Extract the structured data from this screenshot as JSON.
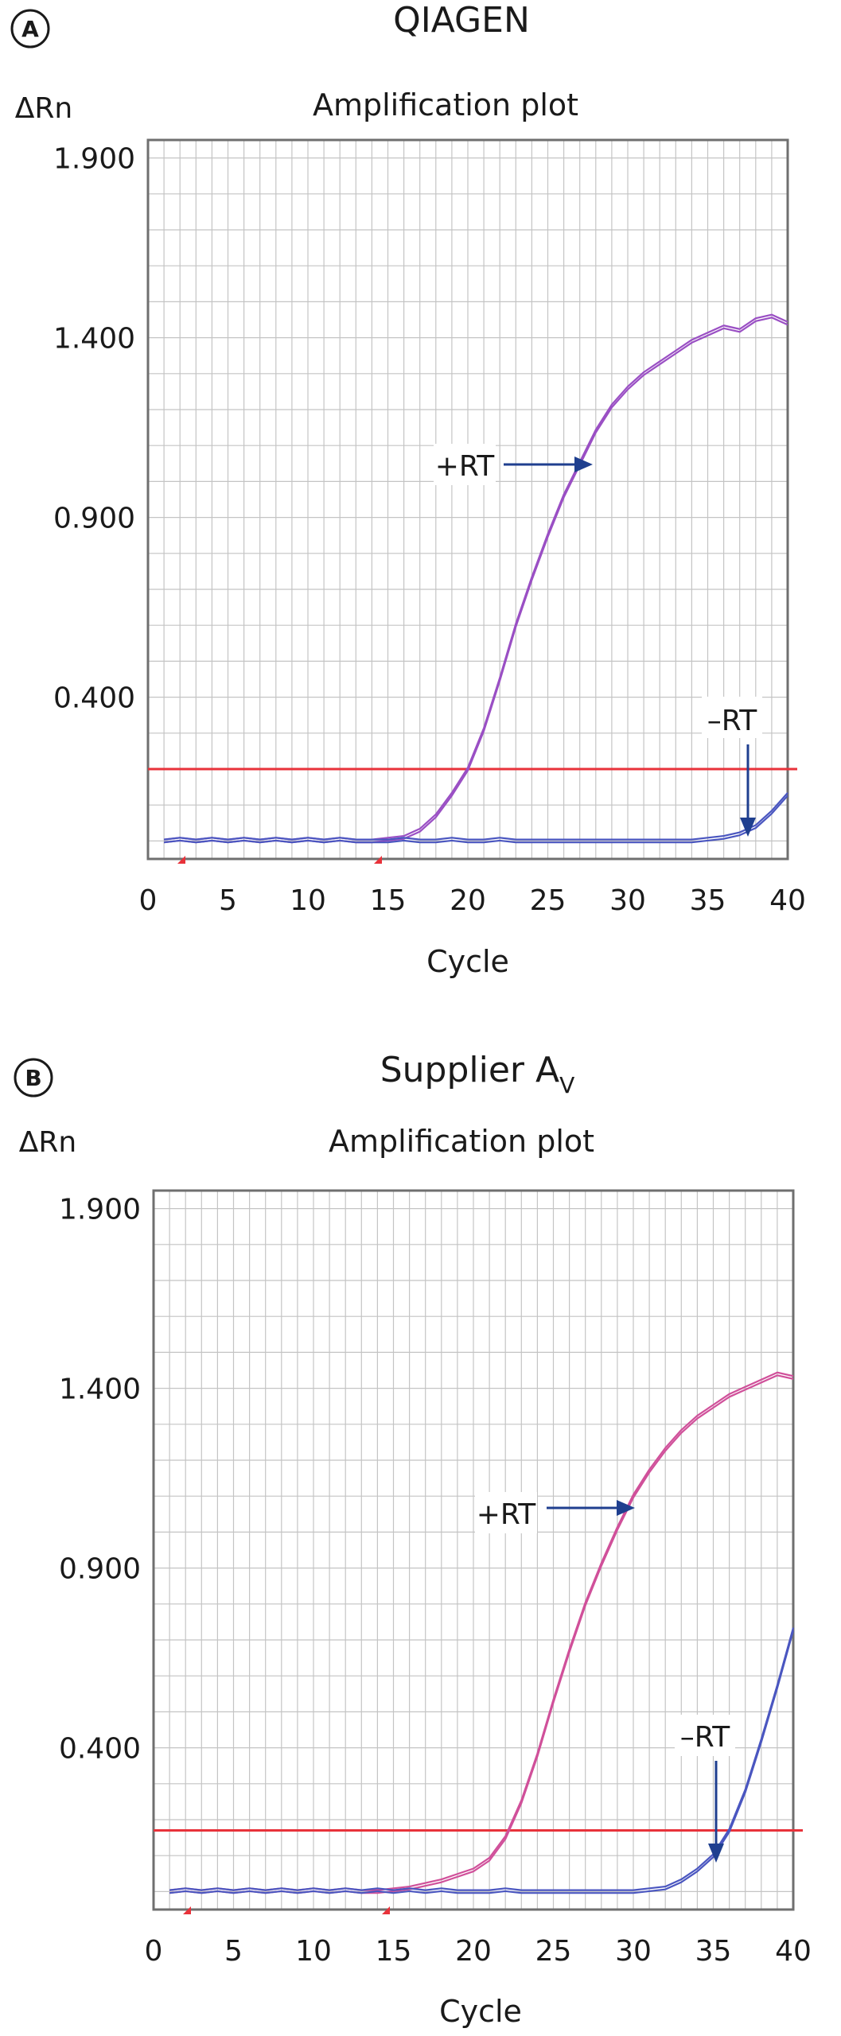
{
  "chart_data": [
    {
      "type": "line",
      "panel_label": "A",
      "title": "QIAGEN",
      "subtitle": "Amplification plot",
      "xlabel": "Cycle",
      "ylabel": "ΔRn",
      "xlim": [
        0,
        40
      ],
      "ylim": [
        -0.05,
        1.95
      ],
      "x_ticks": [
        "0",
        "5",
        "10",
        "15",
        "20",
        "25",
        "30",
        "35",
        "40"
      ],
      "y_ticks": [
        "0.400",
        "0.900",
        "1.400",
        "1.900"
      ],
      "y_tick_values": [
        0.4,
        0.9,
        1.4,
        1.9
      ],
      "grid": true,
      "threshold": 0.2,
      "threshold_color": "#e8323a",
      "series": [
        {
          "color": "#9a4fc4",
          "x": [
            1,
            2,
            3,
            4,
            5,
            6,
            7,
            8,
            9,
            10,
            11,
            12,
            13,
            14,
            15,
            16,
            17,
            18,
            19,
            20,
            21,
            22,
            23,
            24,
            25,
            26,
            27,
            28,
            29,
            30,
            31,
            32,
            33,
            34,
            35,
            36,
            37,
            38,
            39,
            40
          ],
          "values": [
            0.0,
            0.005,
            0.0,
            0.005,
            0.0,
            0.005,
            0.0,
            0.005,
            0.0,
            0.005,
            0.0,
            0.005,
            0.0,
            0.0,
            0.005,
            0.01,
            0.03,
            0.07,
            0.13,
            0.2,
            0.31,
            0.45,
            0.6,
            0.73,
            0.85,
            0.96,
            1.05,
            1.14,
            1.21,
            1.26,
            1.3,
            1.33,
            1.36,
            1.39,
            1.41,
            1.43,
            1.42,
            1.45,
            1.46,
            1.44
          ]
        },
        {
          "color": "#4a56c0",
          "x": [
            1,
            2,
            3,
            4,
            5,
            6,
            7,
            8,
            9,
            10,
            11,
            12,
            13,
            14,
            15,
            16,
            17,
            18,
            19,
            20,
            21,
            22,
            23,
            24,
            25,
            26,
            27,
            28,
            29,
            30,
            31,
            32,
            33,
            34,
            35,
            36,
            37,
            38,
            39,
            40
          ],
          "values": [
            0.0,
            0.005,
            0.0,
            0.005,
            0.0,
            0.005,
            0.0,
            0.005,
            0.0,
            0.005,
            0.0,
            0.005,
            0.0,
            0.0,
            0.0,
            0.005,
            0.0,
            0.0,
            0.005,
            0.0,
            0.0,
            0.005,
            0.0,
            0.0,
            0.0,
            0.0,
            0.0,
            0.0,
            0.0,
            0.0,
            0.0,
            0.0,
            0.0,
            0.0,
            0.005,
            0.01,
            0.02,
            0.04,
            0.08,
            0.13
          ]
        }
      ],
      "annotations": [
        {
          "text": "+RT",
          "target": [
            28,
            1.12
          ]
        },
        {
          "text": "–RT",
          "target": [
            38,
            0.05
          ]
        }
      ]
    },
    {
      "type": "line",
      "panel_label": "B",
      "title": "Supplier A",
      "title_subscript": "V",
      "subtitle": "Amplification plot",
      "xlabel": "Cycle",
      "ylabel": "ΔRn",
      "xlim": [
        0,
        40
      ],
      "ylim": [
        -0.05,
        1.95
      ],
      "x_ticks": [
        "0",
        "5",
        "10",
        "15",
        "20",
        "25",
        "30",
        "35",
        "40"
      ],
      "y_ticks": [
        "0.400",
        "0.900",
        "1.400",
        "1.900"
      ],
      "y_tick_values": [
        0.4,
        0.9,
        1.4,
        1.9
      ],
      "grid": true,
      "threshold": 0.17,
      "threshold_color": "#e8323a",
      "series": [
        {
          "color": "#d0509a",
          "x": [
            1,
            2,
            3,
            4,
            5,
            6,
            7,
            8,
            9,
            10,
            11,
            12,
            13,
            14,
            15,
            16,
            17,
            18,
            19,
            20,
            21,
            22,
            23,
            24,
            25,
            26,
            27,
            28,
            29,
            30,
            31,
            32,
            33,
            34,
            35,
            36,
            37,
            38,
            39,
            40
          ],
          "values": [
            0.0,
            0.005,
            0.0,
            0.005,
            0.0,
            0.005,
            0.0,
            0.005,
            0.0,
            0.005,
            0.0,
            0.005,
            0.0,
            0.0,
            0.005,
            0.01,
            0.02,
            0.03,
            0.045,
            0.06,
            0.09,
            0.15,
            0.25,
            0.38,
            0.53,
            0.67,
            0.8,
            0.91,
            1.01,
            1.1,
            1.17,
            1.23,
            1.28,
            1.32,
            1.35,
            1.38,
            1.4,
            1.42,
            1.44,
            1.43
          ]
        },
        {
          "color": "#4a56c0",
          "x": [
            1,
            2,
            3,
            4,
            5,
            6,
            7,
            8,
            9,
            10,
            11,
            12,
            13,
            14,
            15,
            16,
            17,
            18,
            19,
            20,
            21,
            22,
            23,
            24,
            25,
            26,
            27,
            28,
            29,
            30,
            31,
            32,
            33,
            34,
            35,
            36,
            37,
            38,
            39,
            40
          ],
          "values": [
            0.0,
            0.005,
            0.0,
            0.005,
            0.0,
            0.005,
            0.0,
            0.005,
            0.0,
            0.005,
            0.0,
            0.005,
            0.0,
            0.005,
            0.0,
            0.005,
            0.0,
            0.005,
            0.0,
            0.0,
            0.0,
            0.005,
            0.0,
            0.0,
            0.0,
            0.0,
            0.0,
            0.0,
            0.0,
            0.0,
            0.005,
            0.01,
            0.03,
            0.06,
            0.1,
            0.17,
            0.28,
            0.42,
            0.57,
            0.73
          ]
        }
      ],
      "annotations": [
        {
          "text": "+RT",
          "target": [
            30,
            1.14
          ]
        },
        {
          "text": "–RT",
          "target": [
            35,
            0.17
          ]
        }
      ]
    }
  ]
}
